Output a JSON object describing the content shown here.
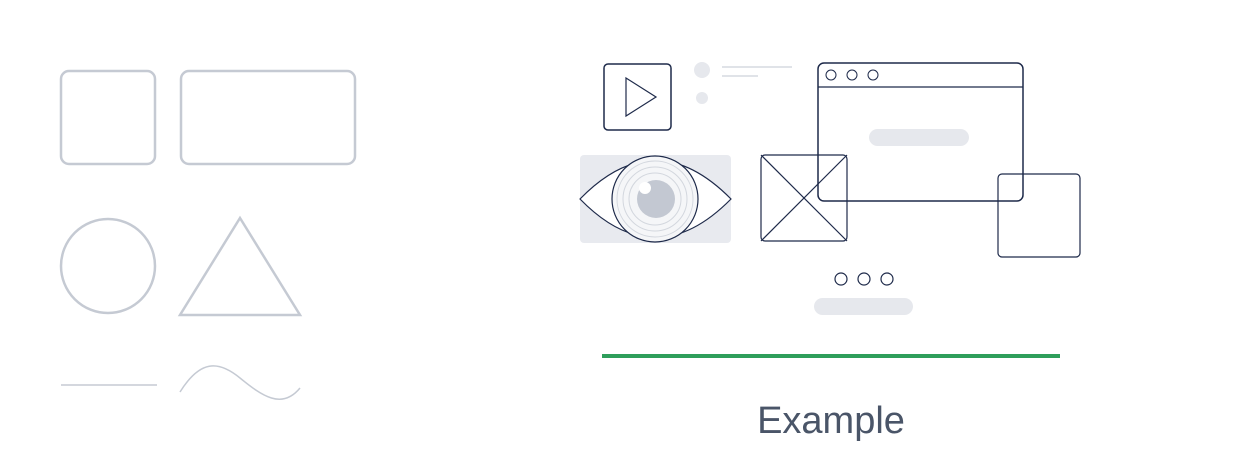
{
  "caption": "Example",
  "colors": {
    "primitive_stroke": "#c5cad3",
    "wireframe_stroke": "#1e2a4a",
    "placeholder_fill": "#e6e8ed",
    "accent_line": "#2e9e5b",
    "caption_text": "#4a5568"
  },
  "left_panel": {
    "shapes": [
      "square",
      "rounded-rectangle",
      "circle",
      "triangle",
      "line",
      "wave"
    ]
  },
  "right_panel": {
    "elements": [
      "play-icon",
      "text-placeholder",
      "browser-window",
      "eye-image-card",
      "image-placeholder",
      "frame-box",
      "dots-indicator",
      "button-placeholder",
      "accent-line",
      "caption"
    ]
  }
}
